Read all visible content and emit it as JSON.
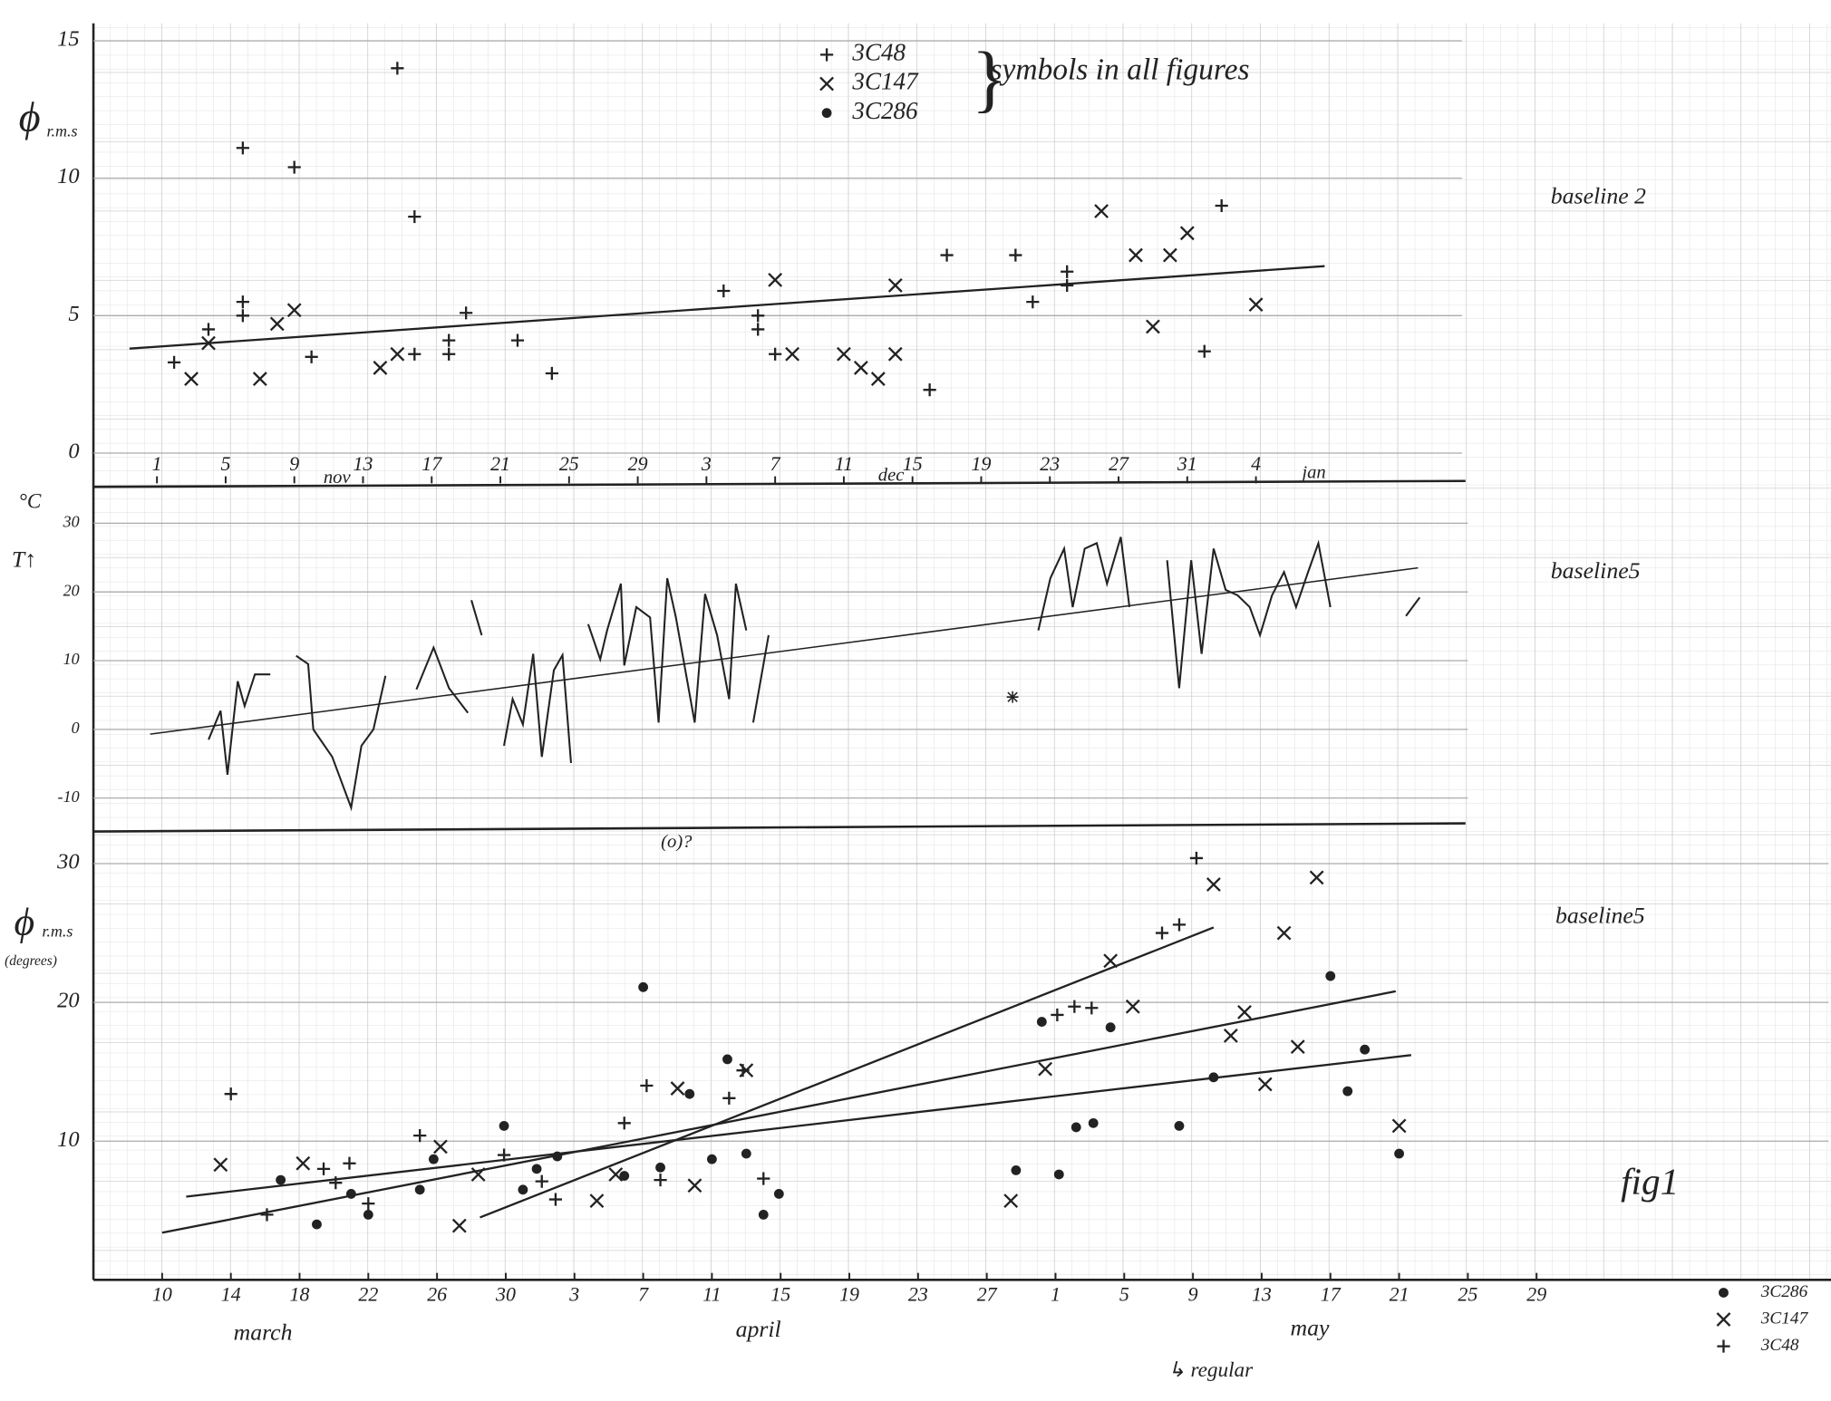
{
  "chart_data": [
    {
      "type": "scatter",
      "ylabel": "ϕ",
      "ylabel_sub": "r.m.s",
      "label": "baseline 2",
      "legend_note": "symbols in all figures",
      "months": [
        "nov",
        "dec",
        "jan"
      ],
      "xlim": [
        -3.7,
        76
      ],
      "ylim": [
        -1.1,
        15
      ],
      "xticks": [
        {
          "value": 0,
          "label": "1"
        },
        {
          "value": 4,
          "label": "5"
        },
        {
          "value": 8,
          "label": "9"
        },
        {
          "value": 12,
          "label": "13"
        },
        {
          "value": 16,
          "label": "17"
        },
        {
          "value": 20,
          "label": "21"
        },
        {
          "value": 24,
          "label": "25"
        },
        {
          "value": 28,
          "label": "29"
        },
        {
          "value": 32,
          "label": "3"
        },
        {
          "value": 36,
          "label": "7"
        },
        {
          "value": 40,
          "label": "11"
        },
        {
          "value": 44,
          "label": "15"
        },
        {
          "value": 48,
          "label": "19"
        },
        {
          "value": 52,
          "label": "23"
        },
        {
          "value": 56,
          "label": "27"
        },
        {
          "value": 60,
          "label": "31"
        },
        {
          "value": 64,
          "label": "4"
        }
      ],
      "yticks": [
        0,
        5,
        10,
        15
      ],
      "series": [
        {
          "name": "3C48",
          "marker": "+",
          "color": "#222",
          "x": [
            1,
            3,
            5,
            5,
            5,
            8,
            9,
            14,
            15,
            15,
            17,
            17,
            18,
            21,
            23,
            33,
            35,
            35,
            36,
            45,
            46,
            50,
            51,
            53,
            53,
            61,
            62
          ],
          "values": [
            3.3,
            4.5,
            5.0,
            5.5,
            11.1,
            10.4,
            3.5,
            14.0,
            3.6,
            8.6,
            3.6,
            4.1,
            5.1,
            4.1,
            2.9,
            5.9,
            5.0,
            4.5,
            3.6,
            2.3,
            7.2,
            7.2,
            5.5,
            6.6,
            6.1,
            3.7,
            9.0
          ]
        },
        {
          "name": "3C147",
          "marker": "x",
          "color": "#222",
          "x": [
            2,
            3,
            6,
            7,
            8,
            13,
            14,
            36,
            37,
            40,
            41,
            42,
            43,
            43,
            55,
            57,
            58,
            59,
            60,
            64
          ],
          "values": [
            2.7,
            4.0,
            2.7,
            4.7,
            5.2,
            3.1,
            3.6,
            6.3,
            3.6,
            3.6,
            3.1,
            2.7,
            3.6,
            6.1,
            8.8,
            7.2,
            4.6,
            7.2,
            8.0,
            5.4
          ]
        },
        {
          "name": "3C286",
          "marker": "o",
          "color": "#222",
          "x": [],
          "values": []
        }
      ],
      "lines": [
        {
          "x": [
            -1.6,
            68
          ],
          "values": [
            3.8,
            6.8
          ]
        }
      ]
    },
    {
      "type": "line",
      "unit": "°C",
      "ylabel": "T↑",
      "label": "baseline5",
      "xlim": [
        -4,
        76
      ],
      "ylim": [
        -14.7,
        35.3
      ],
      "yticks": [
        30,
        20,
        10,
        0,
        -10
      ],
      "color": "#222",
      "x": [
        2.7,
        3.4,
        3.8,
        4.4,
        4.8,
        5.4,
        6.3,
        null,
        7.8,
        8.5,
        8.8,
        9.9,
        11,
        11.6,
        12.3,
        13,
        null,
        14.8,
        15.8,
        16.7,
        17.8,
        null,
        18,
        18.6,
        null,
        19.9,
        20.4,
        21,
        21.6,
        22.1,
        22.8,
        23.3,
        23.8,
        null,
        24.8,
        25.5,
        25.9,
        26.7,
        26.9,
        27.6,
        28.4,
        28.9,
        29.4,
        29.9,
        31,
        31.6,
        32.3,
        33,
        33.4,
        34,
        null,
        34.4,
        35.3,
        null,
        51,
        51.7,
        52.5,
        53,
        53.7,
        54.4,
        55,
        55.8,
        56.3,
        null,
        58.5,
        59.2,
        59.9,
        60.5,
        61.2,
        61.9,
        62.6,
        63.3,
        63.9,
        64.6,
        65.3,
        66,
        66.7,
        67.3,
        68,
        null,
        72.4,
        73.2
      ],
      "values": [
        -1.5,
        2.7,
        -6.6,
        7,
        3.4,
        8,
        8,
        null,
        10.7,
        9.5,
        0,
        -4,
        -11.4,
        -2.4,
        0,
        7.8,
        null,
        5.8,
        11.9,
        6,
        2.4,
        null,
        18.8,
        13.7,
        null,
        -2.4,
        4.4,
        0.7,
        11,
        -4,
        8.6,
        10.8,
        -4.9,
        null,
        15.3,
        10.2,
        14.4,
        21.2,
        9.3,
        17.8,
        16.3,
        1,
        22,
        16.3,
        1,
        19.7,
        13.7,
        4.4,
        21.2,
        14.4,
        null,
        1,
        13.7,
        null,
        14.4,
        22,
        26.3,
        17.8,
        26.3,
        27.1,
        21.2,
        28,
        17.8,
        null,
        24.6,
        6,
        24.6,
        11,
        26.3,
        20.3,
        19.5,
        17.8,
        13.7,
        19.5,
        22.9,
        17.8,
        22.9,
        27.1,
        17.8,
        null,
        16.5,
        19.2
      ],
      "markers": {
        "x": [
          49.5
        ],
        "values": [
          4.7
        ]
      },
      "lines": [
        {
          "x": [
            -0.7,
            73.1
          ],
          "values": [
            -0.7,
            23.5
          ]
        }
      ]
    },
    {
      "type": "scatter",
      "ylabel": "ϕ",
      "ylabel_sub": "r.m.s",
      "ylabel_unit": "(degrees)",
      "label": "baseline5",
      "months": [
        "march",
        "april",
        "may"
      ],
      "annotations": [
        "(o)?",
        "fig1",
        "↳ regular"
      ],
      "xlim": [
        -4,
        97
      ],
      "ylim": [
        0,
        32.4
      ],
      "xticks": [
        {
          "value": 0,
          "label": "10"
        },
        {
          "value": 4,
          "label": "14"
        },
        {
          "value": 8,
          "label": "18"
        },
        {
          "value": 12,
          "label": "22"
        },
        {
          "value": 16,
          "label": "26"
        },
        {
          "value": 20,
          "label": "30"
        },
        {
          "value": 24,
          "label": "3"
        },
        {
          "value": 28,
          "label": "7"
        },
        {
          "value": 32,
          "label": "11"
        },
        {
          "value": 36,
          "label": "15"
        },
        {
          "value": 40,
          "label": "19"
        },
        {
          "value": 44,
          "label": "23"
        },
        {
          "value": 48,
          "label": "27"
        },
        {
          "value": 52,
          "label": "1"
        },
        {
          "value": 56,
          "label": "5"
        },
        {
          "value": 60,
          "label": "9"
        },
        {
          "value": 64,
          "label": "13"
        },
        {
          "value": 68,
          "label": "17"
        },
        {
          "value": 72,
          "label": "21"
        },
        {
          "value": 76,
          "label": "25"
        },
        {
          "value": 80,
          "label": "29"
        }
      ],
      "yticks": [
        30,
        20,
        10
      ],
      "series": [
        {
          "name": "3C286",
          "marker": "o",
          "color": "#222",
          "x": [
            6.9,
            9,
            11,
            12,
            15,
            15.8,
            19.9,
            21,
            21.8,
            23,
            26.9,
            28,
            29,
            30.7,
            32,
            32.9,
            34,
            35,
            35.9,
            49.7,
            51.2,
            52.2,
            53.2,
            54.2,
            55.2,
            59.2,
            61.2,
            68,
            69,
            70,
            72
          ],
          "values": [
            7.2,
            4,
            6.2,
            4.7,
            6.5,
            8.7,
            11.1,
            6.5,
            8,
            8.9,
            7.5,
            21.1,
            8.1,
            13.4,
            8.7,
            15.9,
            9.1,
            4.7,
            6.2,
            7.9,
            18.6,
            7.6,
            11,
            11.3,
            18.2,
            11.1,
            14.6,
            21.9,
            13.6,
            16.6,
            9.1
          ]
        },
        {
          "name": "3C147",
          "marker": "x",
          "color": "#222",
          "x": [
            3.4,
            8.2,
            16.2,
            17.3,
            18.4,
            25.3,
            26.4,
            30,
            31,
            34,
            49.4,
            51.4,
            55.2,
            56.5,
            61.2,
            62.2,
            63,
            64.2,
            65.3,
            66.1,
            67.2,
            72
          ],
          "values": [
            8.3,
            8.4,
            9.6,
            3.9,
            7.6,
            5.7,
            7.6,
            13.8,
            6.8,
            15.1,
            5.7,
            15.2,
            23,
            19.7,
            28.5,
            17.6,
            19.3,
            14.1,
            25,
            16.8,
            29,
            11.1
          ]
        },
        {
          "name": "3C48",
          "marker": "+",
          "color": "#222",
          "x": [
            4,
            6.1,
            9.4,
            10.1,
            10.9,
            12,
            15,
            19.9,
            22.1,
            22.9,
            26.9,
            28.2,
            29,
            33,
            33.8,
            35,
            52.1,
            53.1,
            54.1,
            58.2,
            59.2,
            60.2
          ],
          "values": [
            13.4,
            4.7,
            8,
            7,
            8.4,
            5.5,
            10.4,
            9,
            7.1,
            5.8,
            11.3,
            14,
            7.2,
            13.1,
            15.1,
            7.3,
            19.1,
            19.7,
            19.6,
            25,
            25.6,
            30.4
          ]
        }
      ],
      "lines": [
        {
          "x": [
            1.4,
            72.7
          ],
          "values": [
            6.0,
            16.2
          ]
        },
        {
          "x": [
            0,
            71.8
          ],
          "values": [
            3.4,
            20.8
          ]
        },
        {
          "x": [
            18.5,
            61.2
          ],
          "values": [
            4.5,
            25.4
          ]
        }
      ]
    }
  ]
}
